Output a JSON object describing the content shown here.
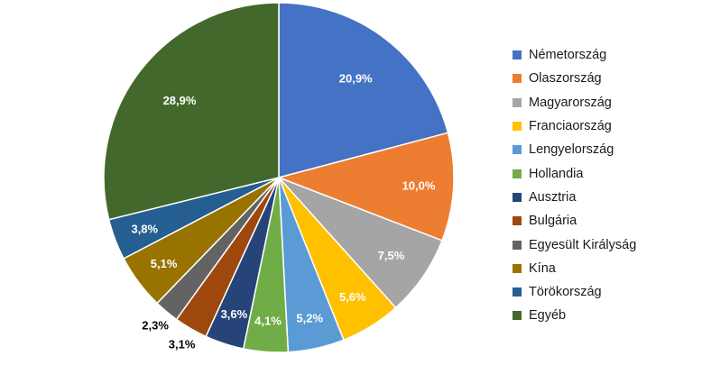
{
  "chart_data": {
    "type": "pie",
    "title": "",
    "legend_position": "right",
    "categories": [
      "Németország",
      "Olaszország",
      "Magyarország",
      "Franciaország",
      "Lengyelország",
      "Hollandia",
      "Ausztria",
      "Bulgária",
      "Egyesült Királyság",
      "Kína",
      "Törökország",
      "Egyéb"
    ],
    "values": [
      20.9,
      10.0,
      7.5,
      5.6,
      5.2,
      4.1,
      3.6,
      3.1,
      2.3,
      5.1,
      3.8,
      28.9
    ],
    "value_labels": [
      "20,9%",
      "10,0%",
      "7,5%",
      "5,6%",
      "5,2%",
      "4,1%",
      "3,6%",
      "3,1%",
      "2,3%",
      "5,1%",
      "3,8%",
      "28,9%"
    ],
    "colors": [
      "#4472c4",
      "#ed7d31",
      "#a5a5a5",
      "#ffc000",
      "#5b9bd5",
      "#70ad47",
      "#264478",
      "#9e480e",
      "#636363",
      "#997300",
      "#255e91",
      "#43682b"
    ],
    "label_colors": [
      "#ffffff",
      "#ffffff",
      "#ffffff",
      "#ffffff",
      "#ffffff",
      "#ffffff",
      "#ffffff",
      "#000000",
      "#000000",
      "#ffffff",
      "#ffffff",
      "#ffffff"
    ]
  }
}
